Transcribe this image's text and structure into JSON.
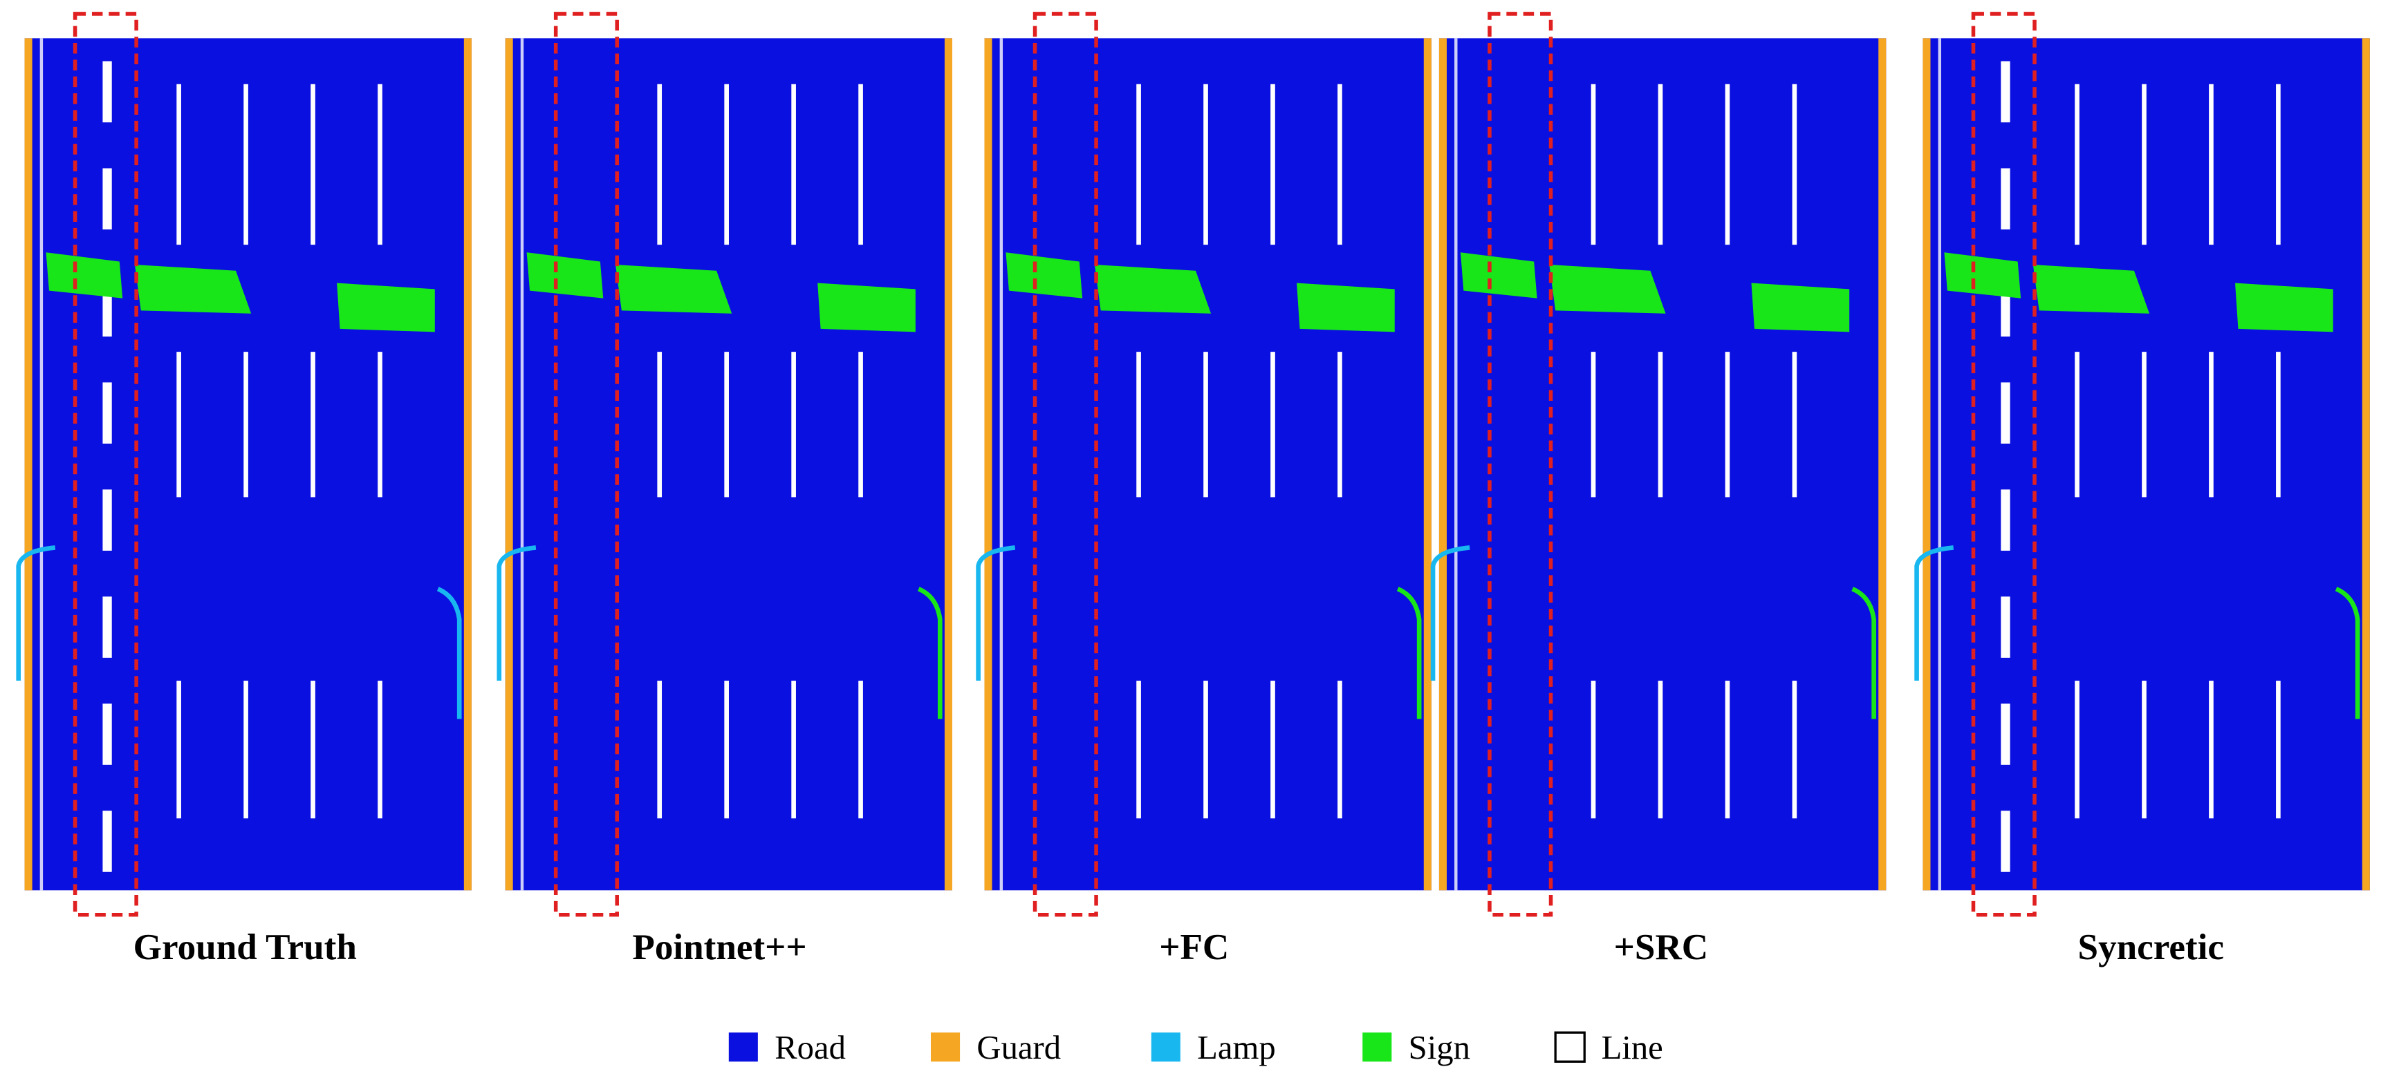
{
  "panels": [
    {
      "label": "Ground Truth"
    },
    {
      "label": "Pointnet++"
    },
    {
      "label": "+FC"
    },
    {
      "label": "+SRC"
    },
    {
      "label": "Syncretic"
    }
  ],
  "legend": [
    {
      "label": "Road",
      "color": "#0a10e0"
    },
    {
      "label": "Guard",
      "color": "#f5a623"
    },
    {
      "label": "Lamp",
      "color": "#19b7f0"
    },
    {
      "label": "Sign",
      "color": "#19e619"
    },
    {
      "label": "Line",
      "color": "#ffffff"
    }
  ]
}
